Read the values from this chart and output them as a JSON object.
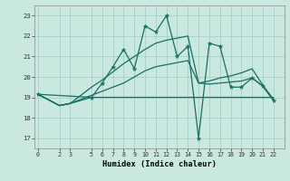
{
  "xlabel": "Humidex (Indice chaleur)",
  "bg_color": "#c8e8e0",
  "grid_color": "#a0ccc4",
  "line_color": "#1a6e64",
  "xlim": [
    -0.3,
    23.0
  ],
  "ylim": [
    16.5,
    23.5
  ],
  "xticks": [
    0,
    2,
    3,
    5,
    6,
    7,
    8,
    9,
    10,
    11,
    12,
    13,
    14,
    15,
    16,
    17,
    18,
    19,
    20,
    21,
    22
  ],
  "yticks": [
    17,
    18,
    19,
    20,
    21,
    22,
    23
  ],
  "lines": [
    {
      "x": [
        0,
        2,
        3,
        5,
        6,
        7,
        8,
        9,
        10,
        11,
        12,
        13,
        14,
        15,
        16,
        17,
        18,
        19,
        20,
        21,
        22
      ],
      "y": [
        19.15,
        18.6,
        18.7,
        19.0,
        19.0,
        19.0,
        19.0,
        19.0,
        19.0,
        19.0,
        19.0,
        19.0,
        19.0,
        19.0,
        19.0,
        19.0,
        19.0,
        19.0,
        19.0,
        19.0,
        19.0
      ],
      "marker": false,
      "lw": 0.9
    },
    {
      "x": [
        0,
        2,
        3,
        5,
        6,
        7,
        8,
        9,
        10,
        11,
        12,
        13,
        14,
        15,
        16,
        17,
        18,
        19,
        20,
        21,
        22
      ],
      "y": [
        19.15,
        18.6,
        18.7,
        19.1,
        19.3,
        19.5,
        19.7,
        20.0,
        20.3,
        20.5,
        20.6,
        20.7,
        20.8,
        19.7,
        19.65,
        19.7,
        19.75,
        19.8,
        19.95,
        19.55,
        18.85
      ],
      "marker": false,
      "lw": 0.9
    },
    {
      "x": [
        0,
        2,
        3,
        5,
        6,
        7,
        8,
        9,
        10,
        11,
        12,
        13,
        14,
        15,
        16,
        17,
        18,
        19,
        20,
        21,
        22
      ],
      "y": [
        19.15,
        18.6,
        18.7,
        19.5,
        19.85,
        20.25,
        20.65,
        21.0,
        21.35,
        21.65,
        21.8,
        21.9,
        22.0,
        19.7,
        19.8,
        19.95,
        20.05,
        20.2,
        20.4,
        19.6,
        18.9
      ],
      "marker": false,
      "lw": 0.9
    },
    {
      "x": [
        0,
        5,
        6,
        7,
        8,
        9,
        10,
        11,
        12,
        13,
        14,
        15,
        16,
        17,
        18,
        19,
        20,
        21,
        22
      ],
      "y": [
        19.15,
        19.0,
        19.7,
        20.5,
        21.35,
        20.4,
        22.5,
        22.2,
        23.0,
        21.0,
        21.5,
        17.0,
        21.65,
        21.5,
        19.5,
        19.5,
        19.95,
        19.55,
        18.85
      ],
      "marker": true,
      "lw": 0.9
    }
  ]
}
